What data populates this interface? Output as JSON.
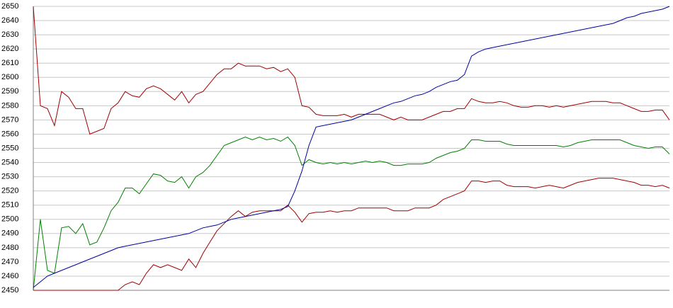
{
  "chart_data": {
    "type": "line",
    "ylim": [
      2450,
      2650
    ],
    "yticks": [
      2450,
      2460,
      2470,
      2480,
      2490,
      2500,
      2510,
      2520,
      2530,
      2540,
      2550,
      2560,
      2570,
      2580,
      2590,
      2600,
      2610,
      2620,
      2630,
      2640,
      2650
    ],
    "grid": true,
    "series": [
      {
        "color": "#a00000",
        "values": [
          2650,
          2580,
          2578,
          2566,
          2590,
          2586,
          2578,
          2578,
          2560,
          2562,
          2564,
          2578,
          2582,
          2590,
          2587,
          2586,
          2592,
          2594,
          2592,
          2588,
          2584,
          2590,
          2582,
          2588,
          2590,
          2596,
          2602,
          2606,
          2606,
          2610,
          2608,
          2608,
          2608,
          2606,
          2607,
          2604,
          2606,
          2600,
          2580,
          2579,
          2574,
          2573,
          2573,
          2573,
          2574,
          2572,
          2574,
          2574,
          2574,
          2574,
          2572,
          2570,
          2572,
          2570,
          2570,
          2570,
          2572,
          2574,
          2576,
          2576,
          2578,
          2578,
          2585,
          2583,
          2582,
          2582,
          2583,
          2582,
          2580,
          2579,
          2579,
          2580,
          2580,
          2579,
          2580,
          2579,
          2580,
          2581,
          2582,
          2583,
          2583,
          2583,
          2582,
          2582,
          2580,
          2578,
          2576,
          2576,
          2577,
          2577,
          2570
        ]
      },
      {
        "color": "#008000",
        "values": [
          2450,
          2500,
          2464,
          2462,
          2494,
          2495,
          2490,
          2497,
          2482,
          2484,
          2494,
          2506,
          2512,
          2522,
          2522,
          2518,
          2525,
          2532,
          2531,
          2527,
          2526,
          2530,
          2522,
          2530,
          2533,
          2538,
          2545,
          2552,
          2554,
          2556,
          2558,
          2556,
          2558,
          2556,
          2557,
          2555,
          2558,
          2552,
          2538,
          2542,
          2540,
          2539,
          2540,
          2539,
          2540,
          2539,
          2540,
          2541,
          2540,
          2541,
          2540,
          2538,
          2538,
          2539,
          2539,
          2539,
          2540,
          2543,
          2545,
          2547,
          2548,
          2550,
          2556,
          2556,
          2555,
          2555,
          2555,
          2553,
          2552,
          2552,
          2552,
          2552,
          2552,
          2552,
          2552,
          2551,
          2552,
          2554,
          2555,
          2556,
          2556,
          2556,
          2556,
          2556,
          2554,
          2552,
          2551,
          2550,
          2551,
          2551,
          2546
        ]
      },
      {
        "color": "#a00000",
        "values": [
          2450,
          2450,
          2450,
          2450,
          2450,
          2450,
          2450,
          2450,
          2450,
          2450,
          2450,
          2450,
          2450,
          2454,
          2456,
          2454,
          2462,
          2468,
          2466,
          2468,
          2466,
          2464,
          2472,
          2466,
          2476,
          2484,
          2492,
          2497,
          2502,
          2506,
          2502,
          2505,
          2506,
          2506,
          2506,
          2506,
          2510,
          2505,
          2498,
          2504,
          2505,
          2505,
          2506,
          2505,
          2506,
          2506,
          2508,
          2508,
          2508,
          2508,
          2508,
          2506,
          2506,
          2506,
          2508,
          2508,
          2508,
          2510,
          2514,
          2516,
          2518,
          2520,
          2527,
          2527,
          2526,
          2527,
          2527,
          2524,
          2523,
          2523,
          2523,
          2522,
          2523,
          2524,
          2523,
          2522,
          2524,
          2526,
          2527,
          2528,
          2529,
          2529,
          2529,
          2528,
          2527,
          2526,
          2524,
          2524,
          2523,
          2524,
          2522
        ]
      },
      {
        "color": "#0000a0",
        "values": [
          2452,
          2456,
          2460,
          2462,
          2464,
          2466,
          2468,
          2470,
          2472,
          2474,
          2476,
          2478,
          2480,
          2481,
          2482,
          2483,
          2484,
          2485,
          2486,
          2487,
          2488,
          2489,
          2490,
          2492,
          2494,
          2495,
          2496,
          2498,
          2500,
          2501,
          2502,
          2503,
          2504,
          2505,
          2506,
          2507,
          2509,
          2520,
          2534,
          2552,
          2565,
          2566,
          2567,
          2568,
          2569,
          2570,
          2572,
          2574,
          2576,
          2578,
          2580,
          2582,
          2583,
          2585,
          2587,
          2588,
          2590,
          2593,
          2595,
          2597,
          2598,
          2602,
          2615,
          2618,
          2620,
          2621,
          2622,
          2623,
          2624,
          2625,
          2626,
          2627,
          2628,
          2629,
          2630,
          2631,
          2632,
          2633,
          2634,
          2635,
          2636,
          2637,
          2638,
          2640,
          2642,
          2643,
          2645,
          2646,
          2647,
          2648,
          2650
        ]
      }
    ]
  }
}
